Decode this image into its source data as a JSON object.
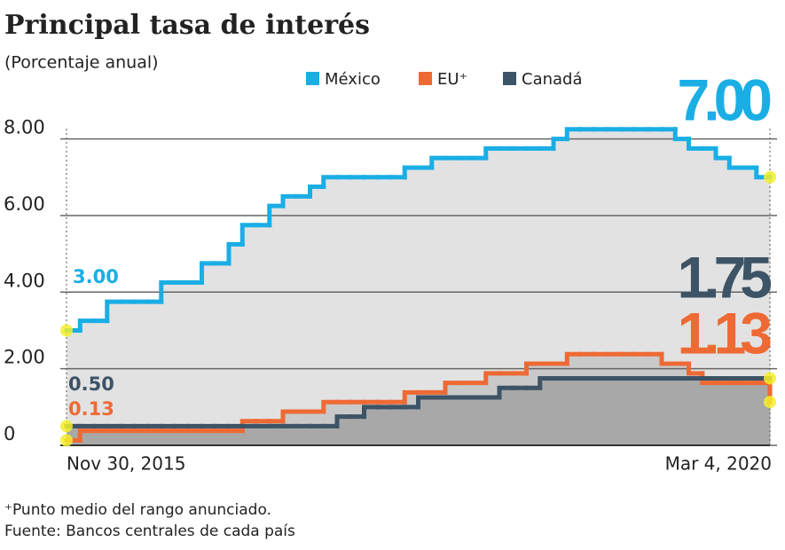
{
  "chart_data": {
    "type": "step",
    "title": "Principal tasa de interés",
    "subtitle": "(Porcentaje anual)",
    "categories": [
      "Nov 30, 2015",
      null,
      null,
      null,
      null,
      null,
      null,
      null,
      null,
      null,
      null,
      null,
      null,
      null,
      null,
      null,
      null,
      null,
      null,
      null,
      null,
      null,
      null,
      null,
      null,
      null,
      null,
      null,
      null,
      null,
      null,
      null,
      null,
      null,
      null,
      null,
      null,
      null,
      null,
      null,
      null,
      null,
      null,
      null,
      null,
      null,
      null,
      null,
      null,
      null,
      null,
      null,
      "Mar 4, 2020"
    ],
    "series": [
      {
        "name": "México",
        "color": "#1aaee5",
        "area_color": "#e2e2e2",
        "values": [
          3.0,
          3.25,
          3.25,
          3.75,
          3.75,
          3.75,
          3.75,
          4.25,
          4.25,
          4.25,
          4.75,
          4.75,
          5.25,
          5.75,
          5.75,
          6.25,
          6.5,
          6.5,
          6.75,
          7.0,
          7.0,
          7.0,
          7.0,
          7.0,
          7.0,
          7.25,
          7.25,
          7.5,
          7.5,
          7.5,
          7.5,
          7.75,
          7.75,
          7.75,
          7.75,
          7.75,
          8.0,
          8.25,
          8.25,
          8.25,
          8.25,
          8.25,
          8.25,
          8.25,
          8.25,
          8.0,
          7.75,
          7.75,
          7.5,
          7.25,
          7.25,
          7.0,
          7.0
        ],
        "value_labels": [
          "3.00",
          null,
          null,
          null,
          null,
          null,
          null,
          null,
          null,
          null,
          null,
          null,
          null,
          null,
          null,
          null,
          null,
          null,
          null,
          null,
          null,
          null,
          null,
          null,
          null,
          null,
          null,
          null,
          null,
          null,
          null,
          null,
          null,
          null,
          null,
          null,
          null,
          null,
          null,
          null,
          null,
          null,
          null,
          null,
          null,
          null,
          null,
          null,
          null,
          null,
          null,
          null,
          "7.00"
        ]
      },
      {
        "name": "EU⁺",
        "color": "#ee6a34",
        "area_color": "#c9c9c9",
        "values": [
          0.13,
          0.38,
          0.38,
          0.38,
          0.38,
          0.38,
          0.38,
          0.38,
          0.38,
          0.38,
          0.38,
          0.38,
          0.38,
          0.63,
          0.63,
          0.63,
          0.88,
          0.88,
          0.88,
          1.13,
          1.13,
          1.13,
          1.13,
          1.13,
          1.13,
          1.38,
          1.38,
          1.38,
          1.63,
          1.63,
          1.63,
          1.88,
          1.88,
          1.88,
          2.13,
          2.13,
          2.13,
          2.38,
          2.38,
          2.38,
          2.38,
          2.38,
          2.38,
          2.38,
          2.13,
          2.13,
          1.88,
          1.63,
          1.63,
          1.63,
          1.63,
          1.63,
          1.13
        ],
        "value_labels": [
          "0.13",
          null,
          null,
          null,
          null,
          null,
          null,
          null,
          null,
          null,
          null,
          null,
          null,
          null,
          null,
          null,
          null,
          null,
          null,
          null,
          null,
          null,
          null,
          null,
          null,
          null,
          null,
          null,
          null,
          null,
          null,
          null,
          null,
          null,
          null,
          null,
          null,
          null,
          null,
          null,
          null,
          null,
          null,
          null,
          null,
          null,
          null,
          null,
          null,
          null,
          null,
          null,
          "1.13"
        ]
      },
      {
        "name": "Canadá",
        "color": "#3d5366",
        "area_color": "#a8a8a8",
        "values": [
          0.5,
          0.5,
          0.5,
          0.5,
          0.5,
          0.5,
          0.5,
          0.5,
          0.5,
          0.5,
          0.5,
          0.5,
          0.5,
          0.5,
          0.5,
          0.5,
          0.5,
          0.5,
          0.5,
          0.5,
          0.75,
          0.75,
          1.0,
          1.0,
          1.0,
          1.0,
          1.25,
          1.25,
          1.25,
          1.25,
          1.25,
          1.25,
          1.5,
          1.5,
          1.5,
          1.75,
          1.75,
          1.75,
          1.75,
          1.75,
          1.75,
          1.75,
          1.75,
          1.75,
          1.75,
          1.75,
          1.75,
          1.75,
          1.75,
          1.75,
          1.75,
          1.75,
          1.75
        ],
        "value_labels": [
          "0.50",
          null,
          null,
          null,
          null,
          null,
          null,
          null,
          null,
          null,
          null,
          null,
          null,
          null,
          null,
          null,
          null,
          null,
          null,
          null,
          null,
          null,
          null,
          null,
          null,
          null,
          null,
          null,
          null,
          null,
          null,
          null,
          null,
          null,
          null,
          null,
          null,
          null,
          null,
          null,
          null,
          null,
          null,
          null,
          null,
          null,
          null,
          null,
          null,
          null,
          null,
          null,
          "1.75"
        ]
      }
    ],
    "ylim": [
      0,
      8.5
    ],
    "yticks": [
      {
        "value": 0,
        "label": "0"
      },
      {
        "value": 2,
        "label": "2.00"
      },
      {
        "value": 4,
        "label": "4.00"
      },
      {
        "value": 6,
        "label": "6.00"
      },
      {
        "value": 8,
        "label": "8.00"
      }
    ],
    "grid": true,
    "footnotes": [
      "⁺Punto medio del rango anunciado.",
      "Fuente: Bancos centrales de cada país"
    ]
  }
}
